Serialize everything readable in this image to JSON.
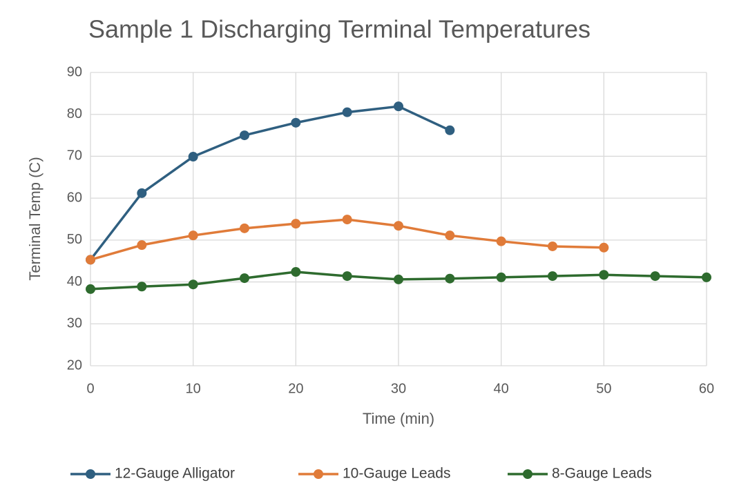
{
  "chart_data": {
    "type": "line",
    "title": "Sample 1 Discharging Terminal Temperatures",
    "x_label": "Time (min)",
    "y_label": "Terminal Temp (C)",
    "x": [
      0,
      5,
      10,
      15,
      20,
      25,
      30,
      35,
      40,
      45,
      50,
      55,
      60
    ],
    "series": [
      {
        "name": "12-Gauge Alligator",
        "color": "#2f5f80",
        "values": [
          45.3,
          61.2,
          69.9,
          75.0,
          78.0,
          80.5,
          81.9,
          76.2,
          null,
          null,
          null,
          null,
          null
        ]
      },
      {
        "name": "10-Gauge Leads",
        "color": "#e07b39",
        "values": [
          45.3,
          48.8,
          51.1,
          52.8,
          53.9,
          54.9,
          53.4,
          51.1,
          49.7,
          48.5,
          48.2,
          null,
          null
        ]
      },
      {
        "name": "8-Gauge Leads",
        "color": "#2e6b2e",
        "values": [
          38.3,
          38.9,
          39.4,
          40.9,
          42.4,
          41.4,
          40.6,
          40.8,
          41.1,
          41.4,
          41.7,
          41.4,
          41.1
        ]
      }
    ],
    "xlim": [
      0,
      60
    ],
    "xticks": [
      0,
      10,
      20,
      30,
      40,
      50,
      60
    ],
    "ylim": [
      20,
      90
    ],
    "yticks": [
      20,
      30,
      40,
      50,
      60,
      70,
      80,
      90
    ],
    "grid": true,
    "legend": "bottom"
  }
}
